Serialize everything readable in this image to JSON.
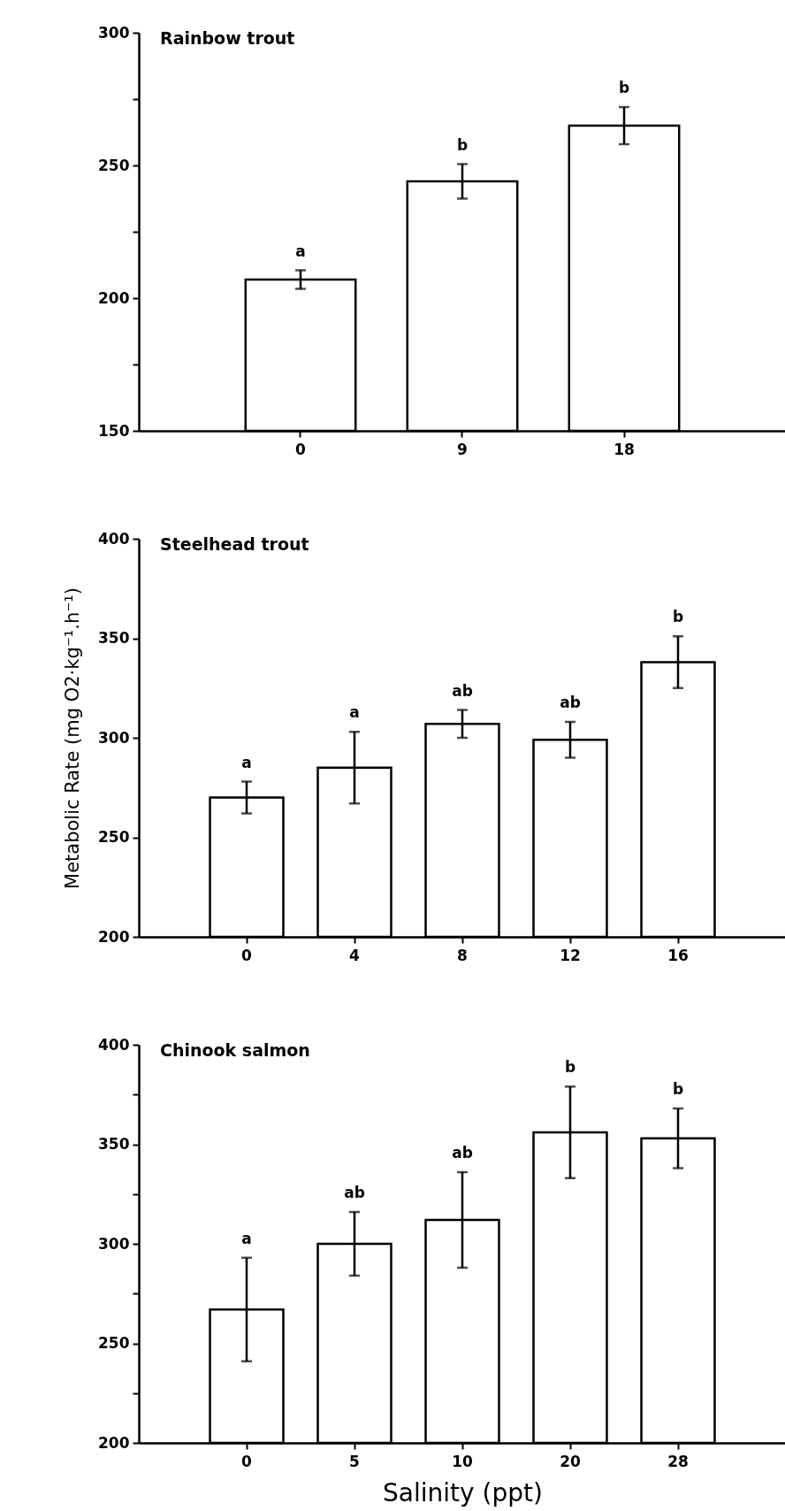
{
  "chart_data": [
    {
      "type": "bar",
      "title": "Rainbow trout",
      "categories": [
        "0",
        "9",
        "18"
      ],
      "values": [
        207,
        244,
        265
      ],
      "errors": [
        3.5,
        6.5,
        7
      ],
      "color": "#ffffff",
      "ylim": [
        150,
        300
      ],
      "yticks": [
        150,
        {
          "value": 175,
          "label": null
        },
        200,
        {
          "value": 225,
          "label": null
        },
        250,
        {
          "value": 275,
          "label": null
        },
        300
      ],
      "annotations": [
        "a",
        "b",
        "b"
      ]
    },
    {
      "type": "bar",
      "title": "Steelhead trout",
      "ylabel": "Metabolic Rate (mg O2·kg⁻¹.h⁻¹)",
      "categories": [
        "0",
        "4",
        "8",
        "12",
        "16"
      ],
      "values": [
        270,
        285,
        307,
        299,
        338
      ],
      "errors": [
        8,
        18,
        7,
        9,
        13
      ],
      "color": "#ffffff",
      "ylim": [
        200,
        400
      ],
      "yticks": [
        200,
        250,
        300,
        350,
        400
      ],
      "annotations": [
        "a",
        "a",
        "ab",
        "ab",
        "b"
      ]
    },
    {
      "type": "bar",
      "title": "Chinook salmon",
      "xlabel": "Salinity (ppt)",
      "categories": [
        "0",
        "5",
        "10",
        "20",
        "28"
      ],
      "values": [
        267,
        300,
        312,
        356,
        353
      ],
      "errors": [
        26,
        16,
        24,
        23,
        15
      ],
      "color": "#ffffff",
      "ylim": [
        200,
        400
      ],
      "yticks": [
        200,
        {
          "value": 225,
          "label": null
        },
        250,
        {
          "value": 275,
          "label": null
        },
        300,
        {
          "value": 325,
          "label": null
        },
        350,
        {
          "value": 375,
          "label": null
        },
        400
      ],
      "annotations": [
        "a",
        "ab",
        "ab",
        "b",
        "b"
      ]
    }
  ]
}
